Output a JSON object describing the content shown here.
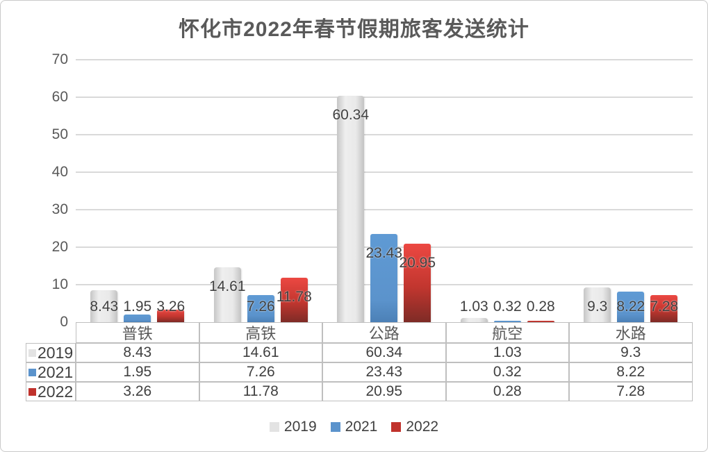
{
  "title": "怀化市2022年春节假期旅客发送统计",
  "chart_data": {
    "type": "bar",
    "title": "怀化市2022年春节假期旅客发送统计",
    "categories": [
      "普铁",
      "高铁",
      "公路",
      "航空",
      "水路"
    ],
    "series": [
      {
        "name": "2019",
        "values": [
          8.43,
          14.61,
          60.34,
          1.03,
          9.3
        ]
      },
      {
        "name": "2021",
        "values": [
          1.95,
          7.26,
          23.43,
          0.32,
          8.22
        ]
      },
      {
        "name": "2022",
        "values": [
          3.26,
          11.78,
          20.95,
          0.28,
          7.28
        ]
      }
    ],
    "ylim": [
      0,
      70
    ],
    "yticks": [
      0,
      10,
      20,
      30,
      40,
      50,
      60,
      70
    ],
    "grid": true,
    "data_labels": true,
    "data_table_shown": true,
    "legend_position": "bottom",
    "legend_entries": [
      "2019",
      "2021",
      "2022"
    ]
  },
  "colors": {
    "series_2019": "#e3e3e3",
    "series_2021": "#5b93cc",
    "series_2022": "#c0322c",
    "series_2022_gradient_top": "#ec4842",
    "series_2022_gradient_bottom": "#7e2b26",
    "gridline": "#d9d9d9",
    "table_border": "#bfbfbf",
    "value_text": "#404040",
    "axis_text": "#595959",
    "title_text": "#595959"
  }
}
